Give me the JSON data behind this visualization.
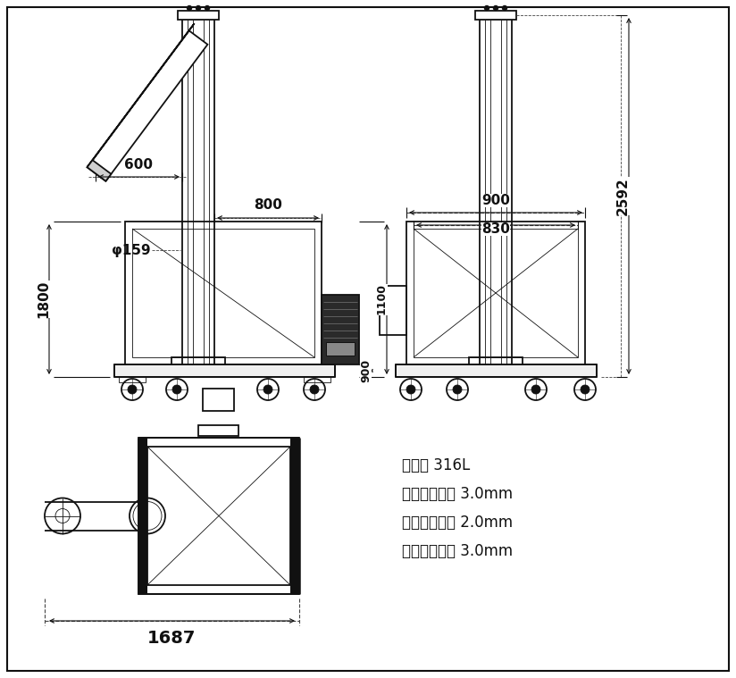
{
  "bg_color": "#ffffff",
  "line_color": "#111111",
  "dim_color": "#111111",
  "dashed_color": "#444444",
  "fig_width": 8.24,
  "fig_height": 7.59,
  "annotations": {
    "material": "材质： 316L",
    "wall_thick": "螺旋管壁厚： 3.0mm",
    "bin_thick": "储料仓板厚： 2.0mm",
    "blade_thick": "螺旋叶片厚： 3.0mm"
  },
  "dims": {
    "d600": "600",
    "d800": "800",
    "phi159": "φ159",
    "d1800": "1800",
    "d900a": "900",
    "d1100": "1100",
    "d830": "830",
    "d900c": "900",
    "d2592": "2592",
    "d1687": "1687"
  }
}
